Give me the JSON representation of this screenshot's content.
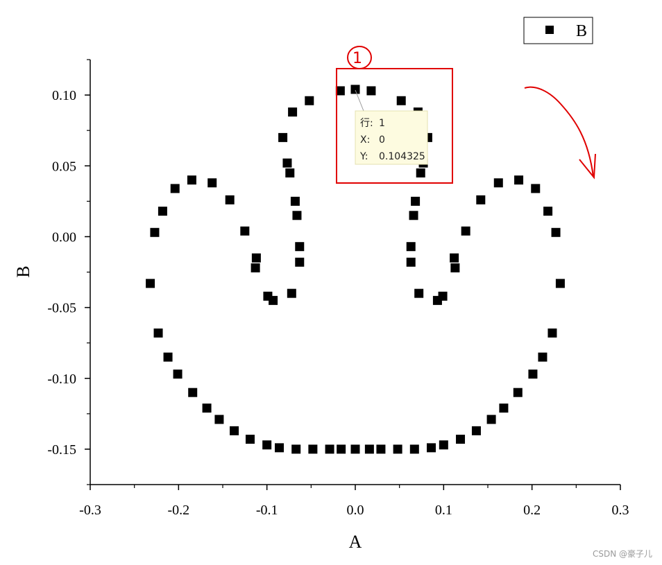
{
  "chart_data": {
    "type": "scatter",
    "title": "",
    "xlabel": "A",
    "ylabel": "B",
    "xlim": [
      -0.3,
      0.3
    ],
    "ylim": [
      -0.175,
      0.125
    ],
    "xticks": [
      -0.3,
      -0.2,
      -0.1,
      0.0,
      0.1,
      0.2,
      0.3
    ],
    "xtick_labels": [
      "-0.3",
      "-0.2",
      "-0.1",
      "0.0",
      "0.1",
      "0.2",
      "0.3"
    ],
    "yticks": [
      -0.15,
      -0.1,
      -0.05,
      0.0,
      0.05,
      0.1
    ],
    "ytick_labels": [
      "-0.15",
      "-0.10",
      "-0.05",
      "0.00",
      "0.05",
      "0.10"
    ],
    "grid": false,
    "legend": {
      "placement": "top-right",
      "entries": [
        "B"
      ]
    },
    "series": [
      {
        "name": "B",
        "marker": "square",
        "color": "#000000",
        "points": [
          [
            0.0,
            0.104
          ],
          [
            -0.017,
            0.103
          ],
          [
            0.018,
            0.103
          ],
          [
            -0.052,
            0.096
          ],
          [
            0.052,
            0.096
          ],
          [
            -0.071,
            0.088
          ],
          [
            0.071,
            0.088
          ],
          [
            -0.082,
            0.07
          ],
          [
            0.082,
            0.07
          ],
          [
            -0.077,
            0.052
          ],
          [
            0.077,
            0.052
          ],
          [
            -0.074,
            0.045
          ],
          [
            0.074,
            0.045
          ],
          [
            -0.068,
            0.025
          ],
          [
            0.068,
            0.025
          ],
          [
            -0.066,
            0.015
          ],
          [
            0.066,
            0.015
          ],
          [
            -0.063,
            -0.007
          ],
          [
            0.063,
            -0.007
          ],
          [
            -0.063,
            -0.018
          ],
          [
            0.063,
            -0.018
          ],
          [
            -0.072,
            -0.04
          ],
          [
            0.072,
            -0.04
          ],
          [
            -0.093,
            -0.045
          ],
          [
            0.093,
            -0.045
          ],
          [
            -0.099,
            -0.042
          ],
          [
            0.099,
            -0.042
          ],
          [
            -0.112,
            -0.015
          ],
          [
            0.112,
            -0.015
          ],
          [
            -0.113,
            -0.022
          ],
          [
            0.113,
            -0.022
          ],
          [
            -0.125,
            0.004
          ],
          [
            0.125,
            0.004
          ],
          [
            -0.142,
            0.026
          ],
          [
            0.142,
            0.026
          ],
          [
            -0.162,
            0.038
          ],
          [
            0.162,
            0.038
          ],
          [
            -0.185,
            0.04
          ],
          [
            0.185,
            0.04
          ],
          [
            -0.204,
            0.034
          ],
          [
            0.204,
            0.034
          ],
          [
            -0.218,
            0.018
          ],
          [
            0.218,
            0.018
          ],
          [
            -0.227,
            0.003
          ],
          [
            0.227,
            0.003
          ],
          [
            -0.232,
            -0.033
          ],
          [
            0.232,
            -0.033
          ],
          [
            -0.223,
            -0.068
          ],
          [
            0.223,
            -0.068
          ],
          [
            -0.212,
            -0.085
          ],
          [
            0.212,
            -0.085
          ],
          [
            -0.201,
            -0.097
          ],
          [
            0.201,
            -0.097
          ],
          [
            -0.184,
            -0.11
          ],
          [
            0.184,
            -0.11
          ],
          [
            -0.168,
            -0.121
          ],
          [
            0.168,
            -0.121
          ],
          [
            -0.154,
            -0.129
          ],
          [
            0.154,
            -0.129
          ],
          [
            -0.137,
            -0.137
          ],
          [
            0.137,
            -0.137
          ],
          [
            -0.119,
            -0.143
          ],
          [
            0.119,
            -0.143
          ],
          [
            -0.1,
            -0.147
          ],
          [
            0.1,
            -0.147
          ],
          [
            -0.086,
            -0.149
          ],
          [
            0.086,
            -0.149
          ],
          [
            -0.067,
            -0.15
          ],
          [
            0.067,
            -0.15
          ],
          [
            -0.048,
            -0.15
          ],
          [
            0.048,
            -0.15
          ],
          [
            -0.029,
            -0.15
          ],
          [
            0.029,
            -0.15
          ],
          [
            -0.016,
            -0.15
          ],
          [
            0.016,
            -0.15
          ],
          [
            0.0,
            -0.15
          ]
        ]
      }
    ],
    "tooltip": {
      "row_label": "行:",
      "row_value": "1",
      "x_label": "X:",
      "x_value": "0",
      "y_label": "Y:",
      "y_value": "0.104325",
      "target": [
        0.0,
        0.104325
      ]
    },
    "annotations": {
      "circled_number": "1",
      "box_color": "#e00000"
    }
  },
  "watermark": "CSDN @豪子儿"
}
